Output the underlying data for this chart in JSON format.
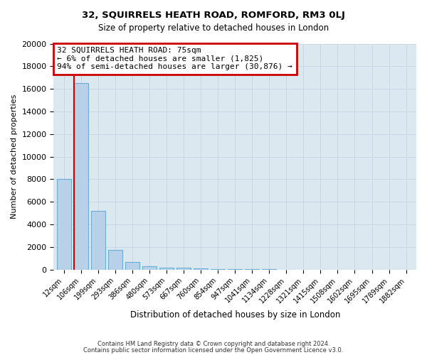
{
  "title": "32, SQUIRRELS HEATH ROAD, ROMFORD, RM3 0LJ",
  "subtitle": "Size of property relative to detached houses in London",
  "xlabel": "Distribution of detached houses by size in London",
  "ylabel": "Number of detached properties",
  "bar_labels": [
    "12sqm",
    "106sqm",
    "199sqm",
    "293sqm",
    "386sqm",
    "480sqm",
    "573sqm",
    "667sqm",
    "760sqm",
    "854sqm",
    "947sqm",
    "1041sqm",
    "1134sqm",
    "1228sqm",
    "1321sqm",
    "1415sqm",
    "1508sqm",
    "1602sqm",
    "1695sqm",
    "1789sqm",
    "1882sqm"
  ],
  "bar_values": [
    8000,
    16500,
    5200,
    1750,
    700,
    300,
    200,
    150,
    100,
    50,
    30,
    20,
    15,
    10,
    8,
    6,
    5,
    4,
    3,
    2,
    1
  ],
  "bar_color": "#b8d0e8",
  "bar_edgecolor": "#6aaed6",
  "annotation_title": "32 SQUIRRELS HEATH ROAD: 75sqm",
  "annotation_line1": "← 6% of detached houses are smaller (1,825)",
  "annotation_line2": "94% of semi-detached houses are larger (30,876) →",
  "annotation_box_color": "#ffffff",
  "annotation_box_edgecolor": "#cc0000",
  "red_line_color": "#cc0000",
  "ylim": [
    0,
    20000
  ],
  "yticks": [
    0,
    2000,
    4000,
    6000,
    8000,
    10000,
    12000,
    14000,
    16000,
    18000,
    20000
  ],
  "footer1": "Contains HM Land Registry data © Crown copyright and database right 2024.",
  "footer2": "Contains public sector information licensed under the Open Government Licence v3.0.",
  "grid_color": "#c8d8e8",
  "bg_color": "#dce8f0"
}
